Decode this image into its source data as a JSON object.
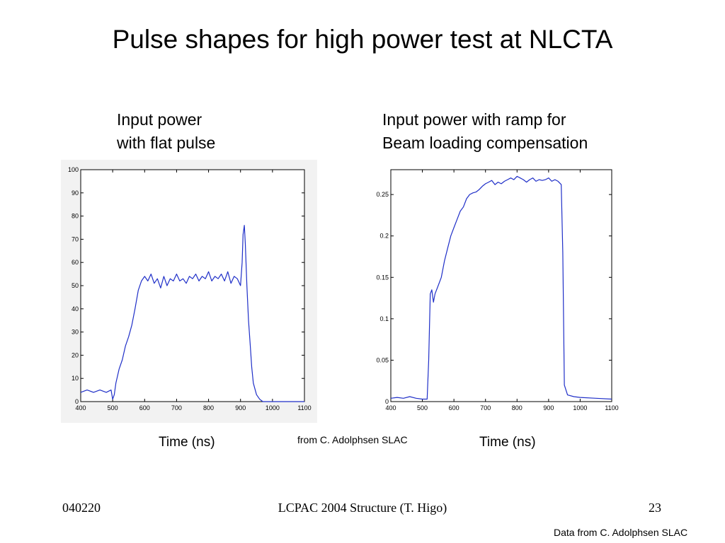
{
  "slide": {
    "title": "Pulse shapes for high power test at NLCTA",
    "left_caption": [
      "Input power",
      "with flat pulse"
    ],
    "right_caption": [
      "Input power with ramp for",
      "Beam loading compensation"
    ],
    "left_xlabel": "Time (ns)",
    "right_xlabel": "Time (ns)",
    "middle_credit": "from C. Adolphsen SLAC",
    "corner_credit": "Data from C. Adolphsen SLAC",
    "footer": {
      "left": "040220",
      "center": "LCPAC 2004  Structure (T. Higo)",
      "right": "23"
    }
  },
  "chart_data": [
    {
      "type": "line",
      "title": "Input power with flat pulse",
      "xlabel": "Time (ns)",
      "ylabel": "",
      "xlim": [
        400,
        1100
      ],
      "ylim": [
        0,
        100
      ],
      "xticks": [
        "400",
        "500",
        "600",
        "700",
        "800",
        "900",
        "1000",
        "1100"
      ],
      "yticks": [
        "0",
        "10",
        "20",
        "30",
        "40",
        "50",
        "60",
        "70",
        "80",
        "90",
        "100"
      ],
      "line_color": "#1f2fc8",
      "series": [
        {
          "x": [
            400,
            420,
            440,
            460,
            480,
            495,
            500,
            505,
            510,
            520,
            530,
            540,
            550,
            560,
            570,
            580,
            590,
            600,
            610,
            620,
            630,
            640,
            650,
            660,
            670,
            680,
            690,
            700,
            710,
            720,
            730,
            740,
            750,
            760,
            770,
            780,
            790,
            800,
            810,
            820,
            830,
            840,
            850,
            860,
            870,
            880,
            890,
            900,
            905,
            908,
            912,
            915,
            920,
            925,
            930,
            935,
            940,
            950,
            960,
            970,
            980,
            990,
            1000,
            1020,
            1040,
            1060,
            1080,
            1100
          ],
          "y": [
            4,
            5,
            4,
            5,
            4,
            5,
            1,
            3,
            8,
            14,
            18,
            24,
            28,
            33,
            40,
            48,
            52,
            54,
            52,
            55,
            51,
            53,
            49,
            54,
            50,
            53,
            52,
            55,
            52,
            53,
            51,
            54,
            53,
            55,
            52,
            54,
            53,
            56,
            52,
            54,
            53,
            55,
            52,
            56,
            51,
            54,
            53,
            50,
            60,
            72,
            76,
            68,
            50,
            35,
            25,
            15,
            8,
            3,
            1,
            0,
            0,
            0,
            0,
            0,
            0,
            0,
            0,
            0
          ]
        }
      ]
    },
    {
      "type": "line",
      "title": "Input power with ramp for Beam loading compensation",
      "xlabel": "Time (ns)",
      "ylabel": "",
      "xlim": [
        400,
        1100
      ],
      "ylim": [
        0,
        0.28
      ],
      "xticks": [
        "400",
        "500",
        "600",
        "700",
        "800",
        "900",
        "1000",
        "1100"
      ],
      "yticks": [
        "0",
        "0.05",
        "0.1",
        "0.15",
        "0.2",
        "0.25"
      ],
      "line_color": "#1f2fc8",
      "series": [
        {
          "x": [
            400,
            420,
            440,
            460,
            480,
            500,
            515,
            520,
            525,
            530,
            535,
            540,
            550,
            560,
            570,
            580,
            590,
            600,
            610,
            620,
            630,
            640,
            650,
            660,
            670,
            680,
            690,
            700,
            710,
            720,
            730,
            740,
            750,
            760,
            770,
            780,
            790,
            800,
            810,
            820,
            830,
            840,
            850,
            860,
            870,
            880,
            890,
            900,
            910,
            920,
            930,
            940,
            945,
            950,
            960,
            980,
            1000,
            1050,
            1100
          ],
          "y": [
            0.004,
            0.005,
            0.004,
            0.006,
            0.004,
            0.003,
            0.003,
            0.05,
            0.13,
            0.135,
            0.12,
            0.13,
            0.14,
            0.15,
            0.17,
            0.185,
            0.2,
            0.21,
            0.22,
            0.23,
            0.235,
            0.245,
            0.25,
            0.252,
            0.253,
            0.256,
            0.26,
            0.263,
            0.265,
            0.267,
            0.262,
            0.265,
            0.263,
            0.266,
            0.268,
            0.27,
            0.268,
            0.272,
            0.27,
            0.268,
            0.265,
            0.268,
            0.27,
            0.266,
            0.268,
            0.267,
            0.268,
            0.27,
            0.266,
            0.268,
            0.266,
            0.262,
            0.18,
            0.02,
            0.008,
            0.006,
            0.005,
            0.004,
            0.003
          ]
        }
      ]
    }
  ]
}
